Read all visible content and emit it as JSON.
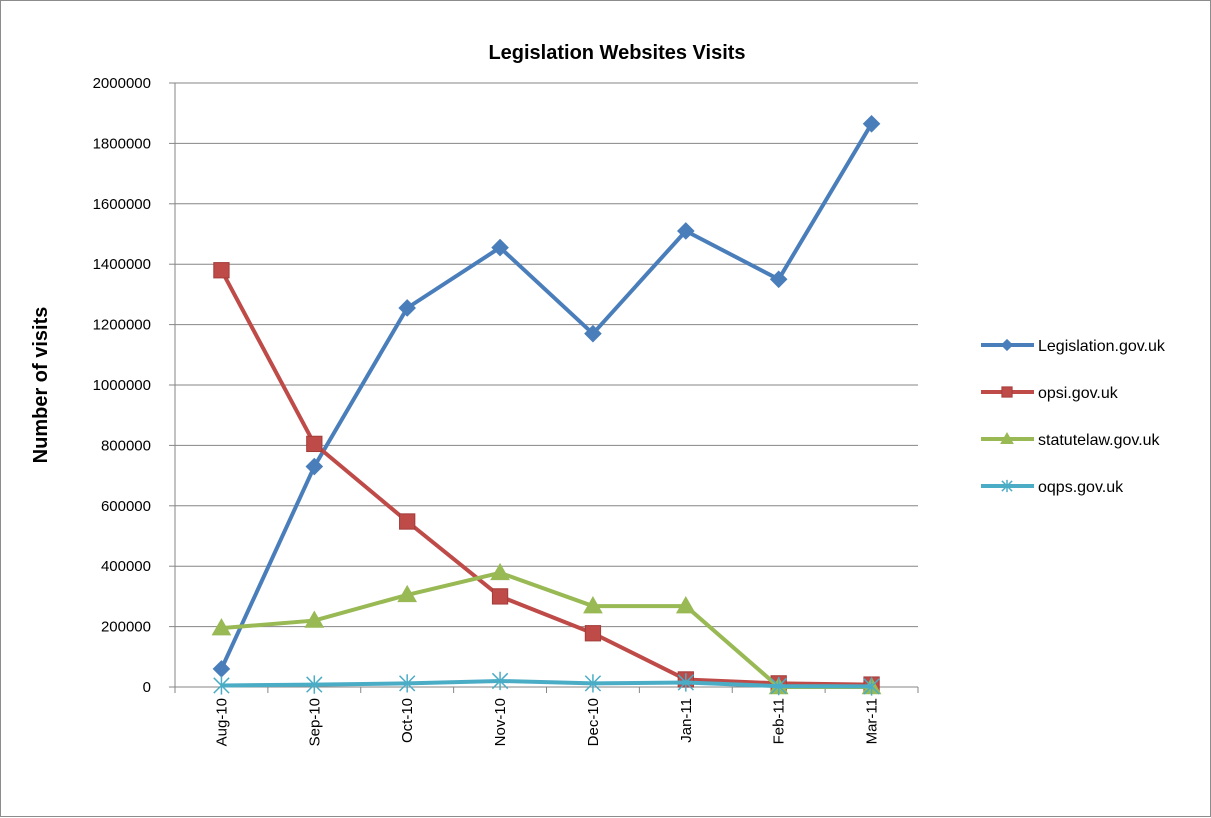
{
  "chart_data": {
    "type": "line",
    "title": "Legislation Websites Visits",
    "xlabel": "",
    "ylabel": "Number of visits",
    "categories": [
      "Aug-10",
      "Sep-10",
      "Oct-10",
      "Nov-10",
      "Dec-10",
      "Jan-11",
      "Feb-11",
      "Mar-11"
    ],
    "ylim": [
      0,
      2000000
    ],
    "yticks": [
      "0",
      "200000",
      "400000",
      "600000",
      "800000",
      "1000000",
      "1200000",
      "1400000",
      "1600000",
      "1800000",
      "2000000"
    ],
    "grid": true,
    "legend_position": "right",
    "series": [
      {
        "name": "Legislation.gov.uk",
        "color": "#4a7ebb",
        "marker": "diamond",
        "values": [
          60000,
          730000,
          1255000,
          1455000,
          1170000,
          1510000,
          1350000,
          1865000
        ]
      },
      {
        "name": "opsi.gov.uk",
        "color": "#be4b48",
        "marker": "square",
        "values": [
          1380000,
          805000,
          548000,
          300000,
          178000,
          25000,
          12000,
          8000
        ]
      },
      {
        "name": "statutelaw.gov.uk",
        "color": "#98b954",
        "marker": "triangle",
        "values": [
          195000,
          220000,
          305000,
          378000,
          268000,
          268000,
          0,
          0
        ]
      },
      {
        "name": "oqps.gov.uk",
        "color": "#4bacc6",
        "marker": "star",
        "values": [
          5000,
          8000,
          12000,
          20000,
          12000,
          15000,
          3000,
          2000
        ]
      }
    ]
  }
}
